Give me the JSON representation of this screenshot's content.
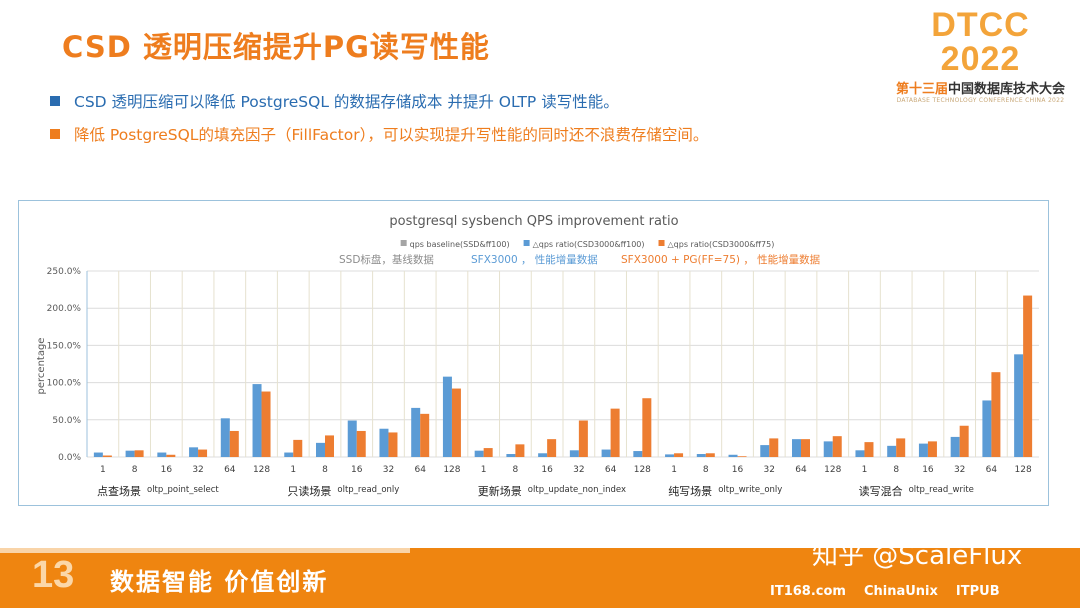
{
  "slide": {
    "title": "CSD 透明压缩提升PG读写性能",
    "bullets": [
      "CSD 透明压缩可以降低 PostgreSQL 的数据存储成本 并提升 OLTP 读写性能。",
      "降低 PostgreSQL的填充因子（FillFactor），可以实现提升写性能的同时还不浪费存储空间。"
    ],
    "logo": {
      "brand": "DTCC 2022",
      "edition": "第十三届",
      "name": "中国数据库技术大会",
      "en": "DATABASE TECHNOLOGY CONFERENCE CHINA 2022"
    },
    "footer": {
      "badge": "13",
      "slogan": "数据智能  价值创新",
      "watermark": "知乎 @ScaleFlux",
      "partners": [
        "IT168.com",
        "ChinaUnix",
        "ITPUB"
      ]
    }
  },
  "colors": {
    "accent": "#ee7d1e",
    "blue": "#5b9bd5",
    "orange": "#ed7d31",
    "grey": "#a5a5a5"
  },
  "chart_data": {
    "type": "bar",
    "title": "postgresql sysbench QPS improvement ratio",
    "ylabel": "percentage",
    "ylim": [
      0,
      250
    ],
    "yticks": [
      "0.0%",
      "50.0%",
      "100.0%",
      "150.0%",
      "200.0%",
      "250.0%"
    ],
    "grid": true,
    "legend_position": "top",
    "annotations": [
      {
        "text": "SSD标盘，基线数据",
        "color": "#8c8c8c"
      },
      {
        "text": "SFX3000 ， 性能增量数据",
        "color": "#5b9bd5"
      },
      {
        "text": "SFX3000 + PG(FF=75) ， 性能增量数据",
        "color": "#ed7d31"
      }
    ],
    "groups": [
      {
        "cn": "点查场景",
        "en": "oltp_point_select"
      },
      {
        "cn": "只读场景",
        "en": "oltp_read_only"
      },
      {
        "cn": "更新场景",
        "en": "oltp_update_non_index"
      },
      {
        "cn": "纯写场景",
        "en": "oltp_write_only"
      },
      {
        "cn": "读写混合",
        "en": "oltp_read_write"
      }
    ],
    "categories": [
      "1",
      "8",
      "16",
      "32",
      "64",
      "128",
      "1",
      "8",
      "16",
      "32",
      "64",
      "128",
      "1",
      "8",
      "16",
      "32",
      "64",
      "128",
      "1",
      "8",
      "16",
      "32",
      "64",
      "128",
      "1",
      "8",
      "16",
      "32",
      "64",
      "128"
    ],
    "series": [
      {
        "name": "qps baseline(SSD&ff100)",
        "color": "#a5a5a5",
        "values": [
          0,
          0,
          0,
          0,
          0,
          0,
          0,
          0,
          0,
          0,
          0,
          0,
          0,
          0,
          0,
          0,
          0,
          0,
          0,
          0,
          0,
          0,
          0,
          0,
          0,
          0,
          0,
          0,
          0,
          0
        ]
      },
      {
        "name": "△qps ratio(CSD3000&ff100)",
        "color": "#5b9bd5",
        "values": [
          6,
          8.5,
          6,
          13,
          52,
          98,
          6,
          19,
          49,
          38,
          66,
          108,
          8.5,
          4,
          5,
          9,
          10,
          8,
          3.5,
          4,
          3,
          16,
          24,
          21,
          9,
          15,
          18,
          27,
          76,
          138
        ]
      },
      {
        "name": "△qps ratio(CSD3000&ff75)",
        "color": "#ed7d31",
        "values": [
          2,
          9,
          3,
          10,
          35,
          88,
          23,
          29,
          35,
          33,
          58,
          92,
          12,
          17,
          24,
          49,
          65,
          79,
          5,
          5,
          1,
          25,
          24,
          28,
          20,
          25,
          21,
          42,
          114,
          217
        ]
      }
    ]
  }
}
